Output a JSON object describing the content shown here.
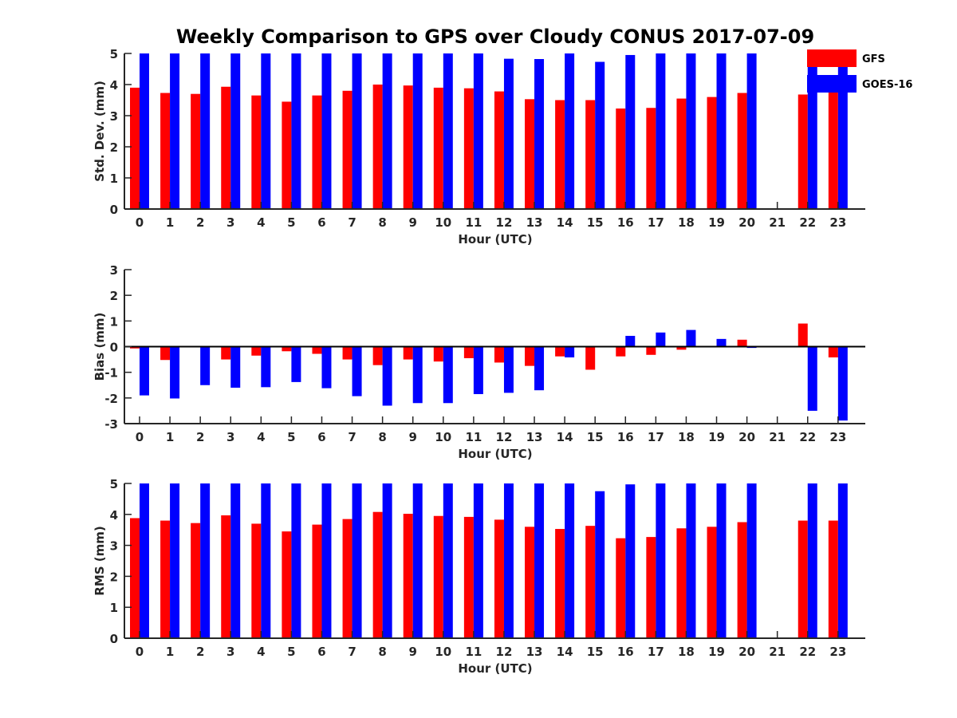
{
  "title": "Weekly Comparison to GPS over Cloudy CONUS 2017-07-09",
  "legend": {
    "placement": "top-right",
    "entries": [
      {
        "label": "GFS",
        "color": "#ff0000"
      },
      {
        "label": "GOES-16",
        "color": "#0000ff"
      }
    ]
  },
  "chart_data": [
    {
      "type": "bar",
      "xlabel": "Hour (UTC)",
      "ylabel": "Std. Dev. (mm)",
      "categories": [
        "0",
        "1",
        "2",
        "3",
        "4",
        "5",
        "6",
        "7",
        "8",
        "9",
        "10",
        "11",
        "12",
        "13",
        "14",
        "15",
        "16",
        "17",
        "18",
        "19",
        "20",
        "21",
        "22",
        "23"
      ],
      "ylim": [
        0,
        5
      ],
      "yticks": [
        "0",
        "1",
        "2",
        "3",
        "4",
        "5"
      ],
      "zero_line": false,
      "series": [
        {
          "name": "GFS",
          "color": "#ff0000",
          "values": [
            3.9,
            3.73,
            3.7,
            3.93,
            3.65,
            3.45,
            3.65,
            3.8,
            4.0,
            3.97,
            3.9,
            3.88,
            3.78,
            3.53,
            3.5,
            3.5,
            3.23,
            3.25,
            3.55,
            3.6,
            3.73,
            null,
            3.68,
            3.75
          ]
        },
        {
          "name": "GOES-16",
          "color": "#0000ff",
          "values": [
            5,
            5,
            5,
            5,
            5,
            5,
            5,
            5,
            5,
            5,
            5,
            5,
            4.83,
            4.82,
            5,
            4.73,
            4.95,
            5,
            5,
            5,
            5,
            null,
            5,
            5
          ]
        }
      ]
    },
    {
      "type": "bar",
      "xlabel": "Hour (UTC)",
      "ylabel": "Bias (mm)",
      "categories": [
        "0",
        "1",
        "2",
        "3",
        "4",
        "5",
        "6",
        "7",
        "8",
        "9",
        "10",
        "11",
        "12",
        "13",
        "14",
        "15",
        "16",
        "17",
        "18",
        "19",
        "20",
        "21",
        "22",
        "23"
      ],
      "ylim": [
        -3,
        3
      ],
      "yticks": [
        "-3",
        "-2",
        "-1",
        "0",
        "1",
        "2",
        "3"
      ],
      "zero_line": true,
      "series": [
        {
          "name": "GFS",
          "color": "#ff0000",
          "values": [
            -0.07,
            -0.52,
            0,
            -0.5,
            -0.35,
            -0.18,
            -0.28,
            -0.5,
            -0.72,
            -0.5,
            -0.58,
            -0.45,
            -0.62,
            -0.75,
            -0.38,
            -0.9,
            -0.38,
            -0.32,
            -0.12,
            0,
            0.27,
            null,
            0.9,
            -0.42
          ]
        },
        {
          "name": "GOES-16",
          "color": "#0000ff",
          "values": [
            -1.9,
            -2.02,
            -1.5,
            -1.6,
            -1.58,
            -1.38,
            -1.62,
            -1.93,
            -2.3,
            -2.2,
            -2.2,
            -1.85,
            -1.8,
            -1.7,
            -0.42,
            0,
            0.42,
            0.55,
            0.65,
            0.3,
            -0.05,
            null,
            -2.5,
            -2.88
          ]
        }
      ]
    },
    {
      "type": "bar",
      "xlabel": "Hour (UTC)",
      "ylabel": "RMS (mm)",
      "categories": [
        "0",
        "1",
        "2",
        "3",
        "4",
        "5",
        "6",
        "7",
        "8",
        "9",
        "10",
        "11",
        "12",
        "13",
        "14",
        "15",
        "16",
        "17",
        "18",
        "19",
        "20",
        "21",
        "22",
        "23"
      ],
      "ylim": [
        0,
        5
      ],
      "yticks": [
        "0",
        "1",
        "2",
        "3",
        "4",
        "5"
      ],
      "zero_line": false,
      "series": [
        {
          "name": "GFS",
          "color": "#ff0000",
          "values": [
            3.88,
            3.8,
            3.72,
            3.97,
            3.7,
            3.45,
            3.67,
            3.85,
            4.08,
            4.02,
            3.95,
            3.92,
            3.83,
            3.6,
            3.53,
            3.63,
            3.23,
            3.27,
            3.55,
            3.6,
            3.75,
            null,
            3.8,
            3.8
          ]
        },
        {
          "name": "GOES-16",
          "color": "#0000ff",
          "values": [
            5,
            5,
            5,
            5,
            5,
            5,
            5,
            5,
            5,
            5,
            5,
            5,
            5,
            5,
            5,
            4.75,
            4.97,
            5,
            5,
            5,
            5,
            null,
            5,
            5
          ]
        }
      ]
    }
  ]
}
